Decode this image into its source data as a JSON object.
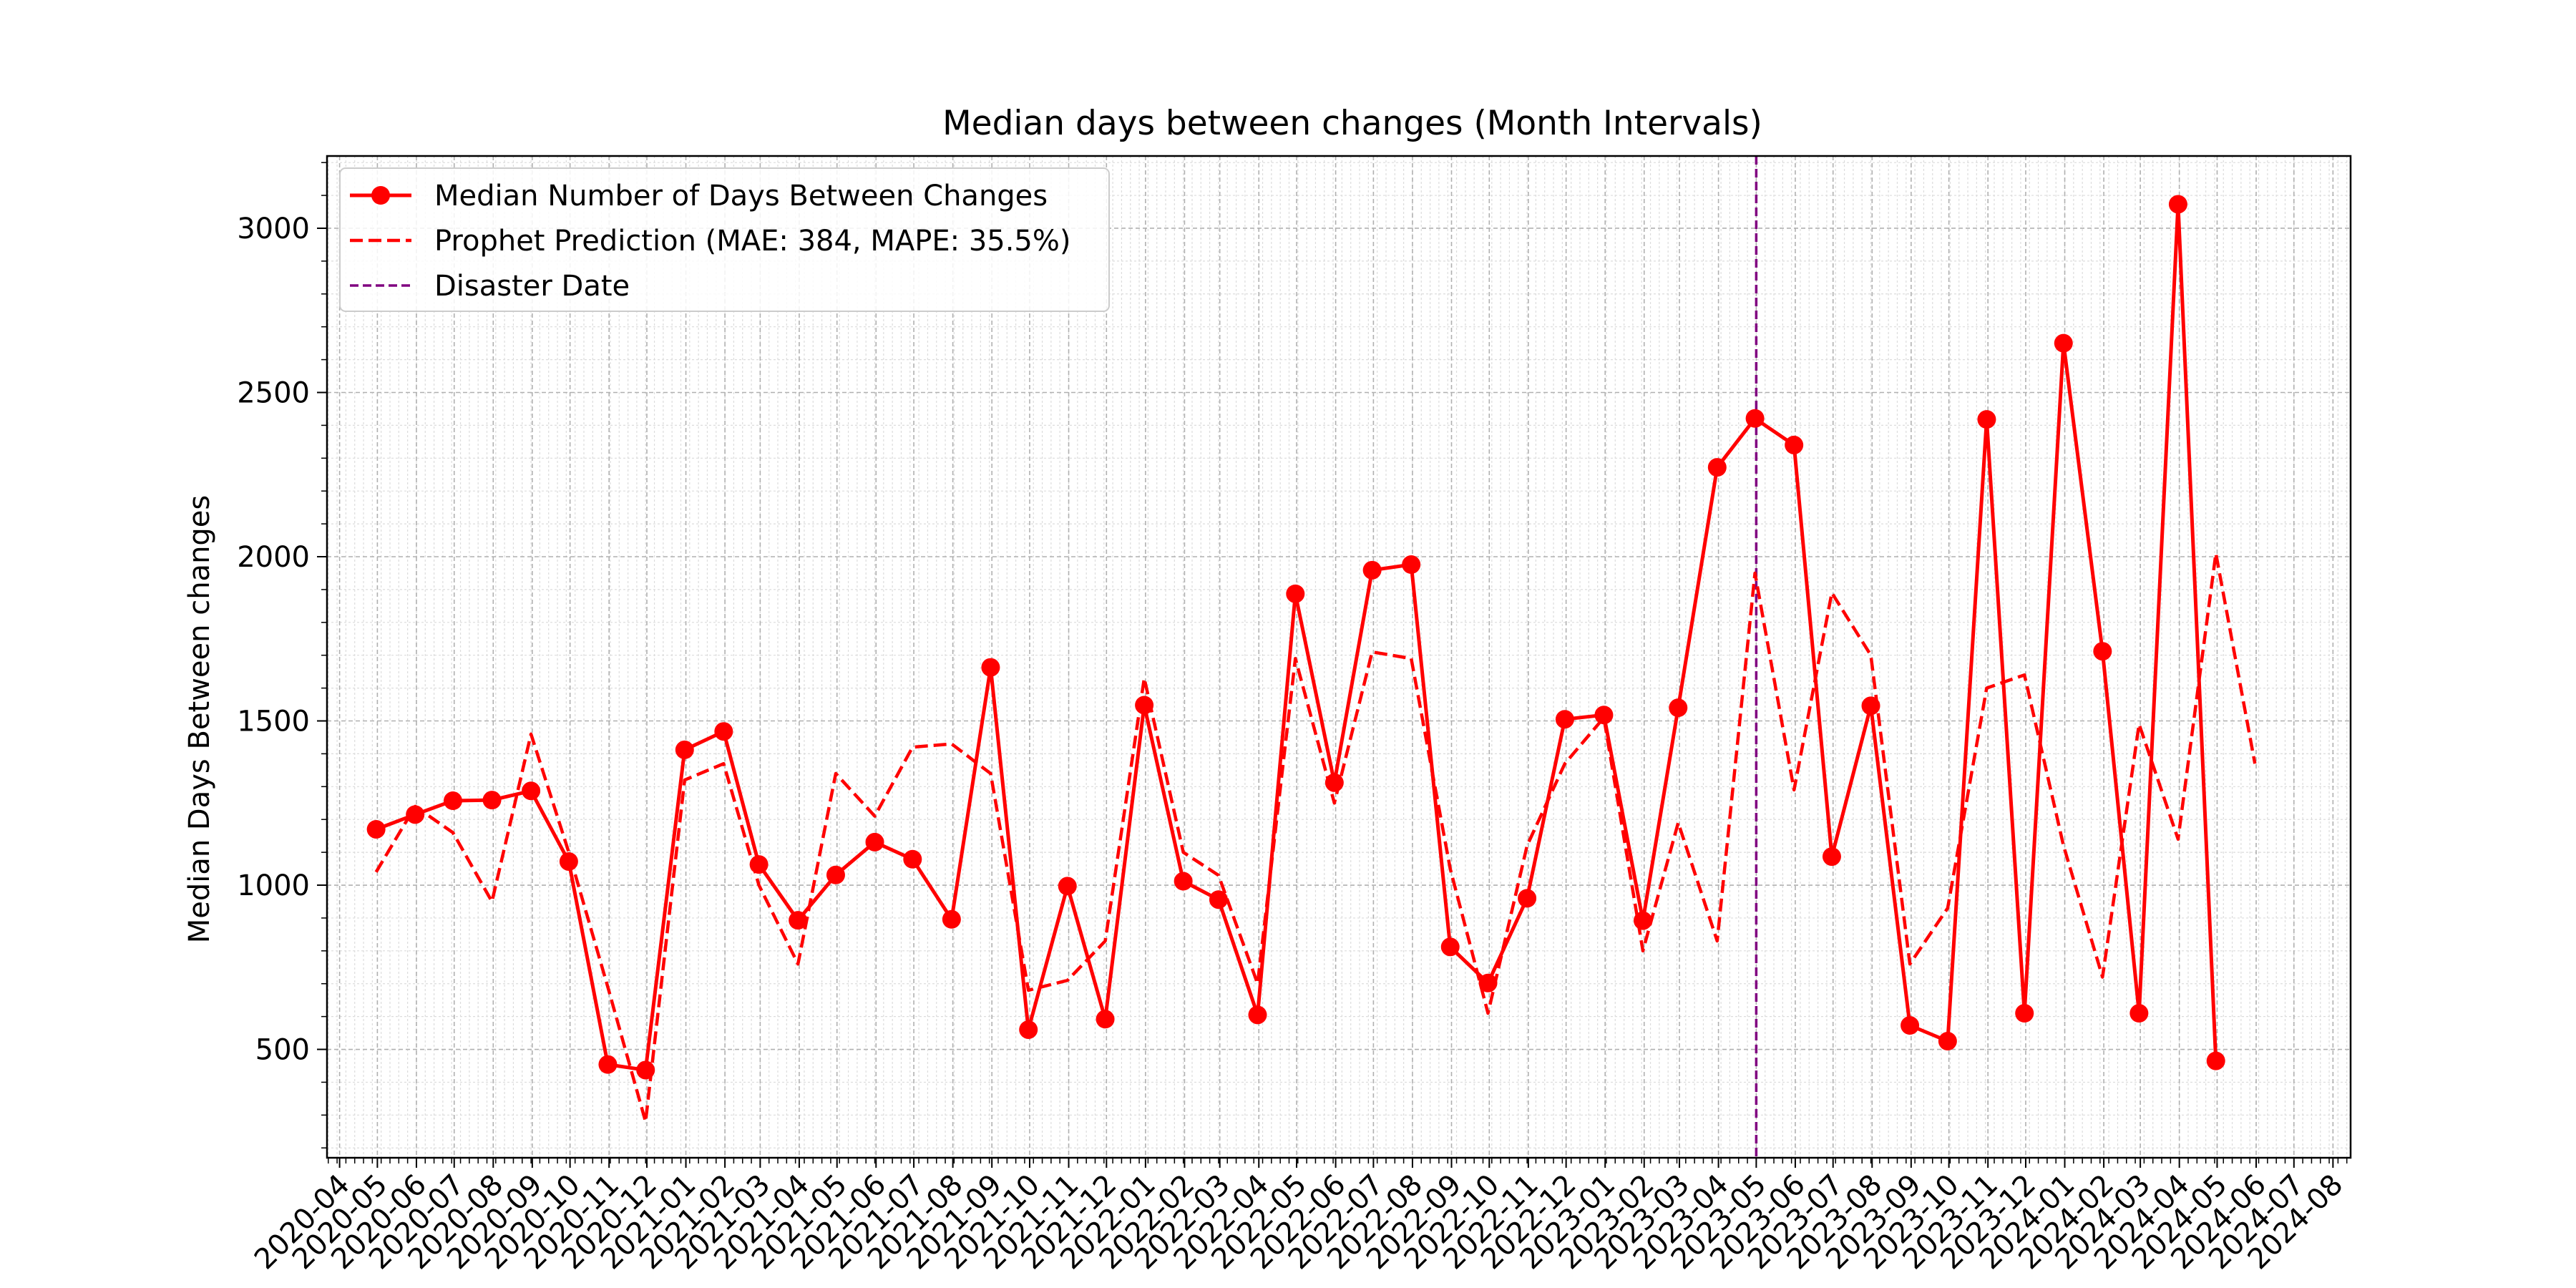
{
  "chart_data": {
    "type": "line",
    "title": "Median days between changes (Month Intervals)",
    "xlabel": "",
    "ylabel": "Median Days Between changes",
    "x_ticks": [
      "2020-04",
      "2020-05",
      "2020-06",
      "2020-07",
      "2020-08",
      "2020-09",
      "2020-10",
      "2020-11",
      "2020-12",
      "2021-01",
      "2021-02",
      "2021-03",
      "2021-04",
      "2021-05",
      "2021-06",
      "2021-07",
      "2021-08",
      "2021-09",
      "2021-10",
      "2021-11",
      "2021-12",
      "2022-01",
      "2022-02",
      "2022-03",
      "2022-04",
      "2022-05",
      "2022-06",
      "2022-07",
      "2022-08",
      "2022-09",
      "2022-10",
      "2022-11",
      "2022-12",
      "2023-01",
      "2023-02",
      "2023-03",
      "2023-04",
      "2023-05",
      "2023-06",
      "2023-07",
      "2023-08",
      "2023-09",
      "2023-10",
      "2023-11",
      "2023-12",
      "2024-01",
      "2024-02",
      "2024-03",
      "2024-04",
      "2024-05",
      "2024-06",
      "2024-07",
      "2024-08"
    ],
    "y_ticks": [
      500,
      1000,
      1500,
      2000,
      2500,
      3000
    ],
    "xlim": [
      "2020-03-22",
      "2024-08-15"
    ],
    "ylim": [
      170,
      3220
    ],
    "grid": true,
    "legend_position": "upper-left",
    "series": [
      {
        "name": "Median Number of Days Between Changes",
        "style": "solid-marker",
        "color": "#ff0000",
        "x": [
          "2020-04-30",
          "2020-05-31",
          "2020-06-30",
          "2020-07-31",
          "2020-08-31",
          "2020-09-30",
          "2020-10-31",
          "2020-11-30",
          "2020-12-31",
          "2021-01-31",
          "2021-02-28",
          "2021-03-31",
          "2021-04-30",
          "2021-05-31",
          "2021-06-30",
          "2021-07-31",
          "2021-08-31",
          "2021-09-30",
          "2021-10-31",
          "2021-11-30",
          "2021-12-31",
          "2022-01-31",
          "2022-02-28",
          "2022-03-31",
          "2022-04-30",
          "2022-05-31",
          "2022-06-30",
          "2022-07-31",
          "2022-08-31",
          "2022-09-30",
          "2022-10-31",
          "2022-11-30",
          "2022-12-31",
          "2023-01-31",
          "2023-02-28",
          "2023-03-31",
          "2023-04-30",
          "2023-05-31",
          "2023-06-30",
          "2023-07-31",
          "2023-08-31",
          "2023-09-30",
          "2023-10-31",
          "2023-11-30",
          "2023-12-31",
          "2024-01-31",
          "2024-02-29",
          "2024-03-31",
          "2024-04-30"
        ],
        "values": [
          1170,
          1215,
          1257,
          1259,
          1287,
          1072,
          454,
          437,
          1412,
          1468,
          1063,
          893,
          1031,
          1131,
          1079,
          896,
          1663,
          560,
          997,
          592,
          1548,
          1012,
          956,
          605,
          1887,
          1312,
          1959,
          1976,
          812,
          702,
          960,
          1505,
          1518,
          892,
          1540,
          2272,
          2421,
          2340,
          1087,
          1546,
          573,
          525,
          2418,
          610,
          2650,
          1712,
          610,
          3073,
          465
        ]
      },
      {
        "name": "Prophet Prediction (MAE: 384, MAPE: 35.5%)",
        "style": "dashed",
        "color": "#ff0000",
        "x": [
          "2020-04-30",
          "2020-05-31",
          "2020-06-30",
          "2020-07-31",
          "2020-08-31",
          "2020-09-30",
          "2020-10-31",
          "2020-11-30",
          "2020-12-31",
          "2021-01-31",
          "2021-02-28",
          "2021-03-31",
          "2021-04-30",
          "2021-05-31",
          "2021-06-30",
          "2021-07-31",
          "2021-08-31",
          "2021-09-30",
          "2021-10-31",
          "2021-11-30",
          "2021-12-31",
          "2022-01-31",
          "2022-02-28",
          "2022-03-31",
          "2022-04-30",
          "2022-05-31",
          "2022-06-30",
          "2022-07-31",
          "2022-08-31",
          "2022-09-30",
          "2022-10-31",
          "2022-11-30",
          "2022-12-31",
          "2023-01-31",
          "2023-02-28",
          "2023-03-31",
          "2023-04-30",
          "2023-05-31",
          "2023-06-30",
          "2023-07-31",
          "2023-08-31",
          "2023-09-30",
          "2023-10-31",
          "2023-11-30",
          "2023-12-31",
          "2024-01-31",
          "2024-02-29",
          "2024-03-31",
          "2024-04-30",
          "2024-05-31"
        ],
        "values": [
          1040,
          1240,
          1160,
          950,
          1460,
          1100,
          690,
          280,
          1320,
          1370,
          1000,
          760,
          1340,
          1210,
          1420,
          1430,
          1340,
          680,
          710,
          830,
          1630,
          1100,
          1030,
          700,
          1690,
          1250,
          1710,
          1690,
          1050,
          610,
          1120,
          1370,
          1510,
          800,
          1190,
          830,
          1950,
          1290,
          1890,
          1700,
          760,
          930,
          1600,
          1640,
          1120,
          720,
          1490,
          1140,
          2010,
          1370
        ]
      }
    ],
    "vertical_line": {
      "name": "Disaster Date",
      "x": "2023-05-01",
      "color": "#800080",
      "style": "dashed"
    }
  }
}
